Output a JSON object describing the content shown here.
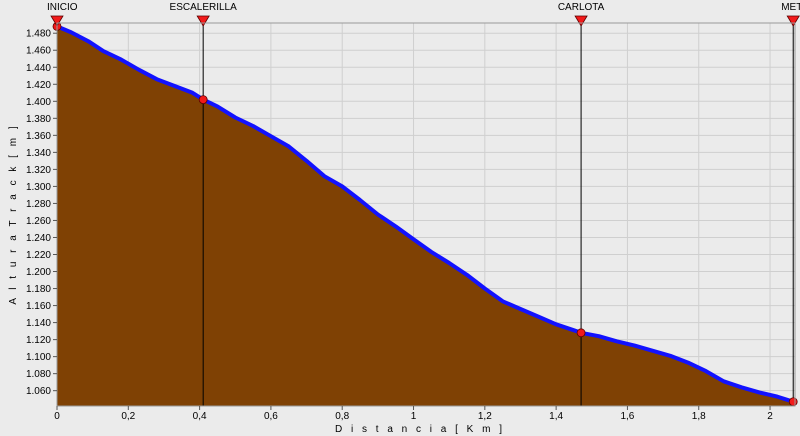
{
  "chart_data": {
    "type": "area",
    "title": "",
    "xlabel": "D i s t a n c i a   [ K m ]",
    "ylabel": "A l t u r a   T r a c k   [ m ]",
    "xlim": [
      0,
      2.07
    ],
    "ylim": [
      1042,
      1492
    ],
    "x_ticks": [
      "0",
      "0,2",
      "0,4",
      "0,6",
      "0,8",
      "1",
      "1,2",
      "1,4",
      "1,6",
      "1,8",
      "2"
    ],
    "y_ticks": [
      "1.060",
      "1.080",
      "1.100",
      "1.120",
      "1.140",
      "1.160",
      "1.180",
      "1.200",
      "1.220",
      "1.240",
      "1.260",
      "1.280",
      "1.300",
      "1.320",
      "1.340",
      "1.360",
      "1.380",
      "1.400",
      "1.420",
      "1.440",
      "1.460",
      "1.480"
    ],
    "grid": true,
    "series": [
      {
        "x": [
          0,
          0.04,
          0.09,
          0.13,
          0.18,
          0.23,
          0.28,
          0.33,
          0.38,
          0.41,
          0.45,
          0.5,
          0.55,
          0.6,
          0.65,
          0.7,
          0.75,
          0.8,
          0.85,
          0.9,
          0.95,
          1.0,
          1.05,
          1.1,
          1.15,
          1.2,
          1.25,
          1.3,
          1.35,
          1.4,
          1.45,
          1.47,
          1.52,
          1.57,
          1.62,
          1.67,
          1.72,
          1.77,
          1.82,
          1.87,
          1.92,
          1.97,
          2.02,
          2.065
        ],
        "y": [
          1488,
          1481,
          1470,
          1459,
          1449,
          1437,
          1426,
          1418,
          1410,
          1402,
          1394,
          1381,
          1371,
          1359,
          1347,
          1330,
          1312,
          1300,
          1284,
          1267,
          1253,
          1238,
          1223,
          1210,
          1196,
          1180,
          1165,
          1156,
          1147,
          1138,
          1131,
          1128,
          1124,
          1118,
          1113,
          1107,
          1101,
          1093,
          1083,
          1071,
          1064,
          1058,
          1053,
          1047
        ]
      }
    ],
    "waypoints": [
      {
        "label": "INICIO",
        "x": 0
      },
      {
        "label": "ESCALERILLA",
        "x": 0.41
      },
      {
        "label": "CARLOTA",
        "x": 1.47
      },
      {
        "label": "MET",
        "x": 2.065
      }
    ],
    "colors": {
      "fill": "#7f4104",
      "line": "#1212ff",
      "marker": "#f21a1a",
      "background": "#ebebeb",
      "grid": "#cfcfcf"
    }
  }
}
